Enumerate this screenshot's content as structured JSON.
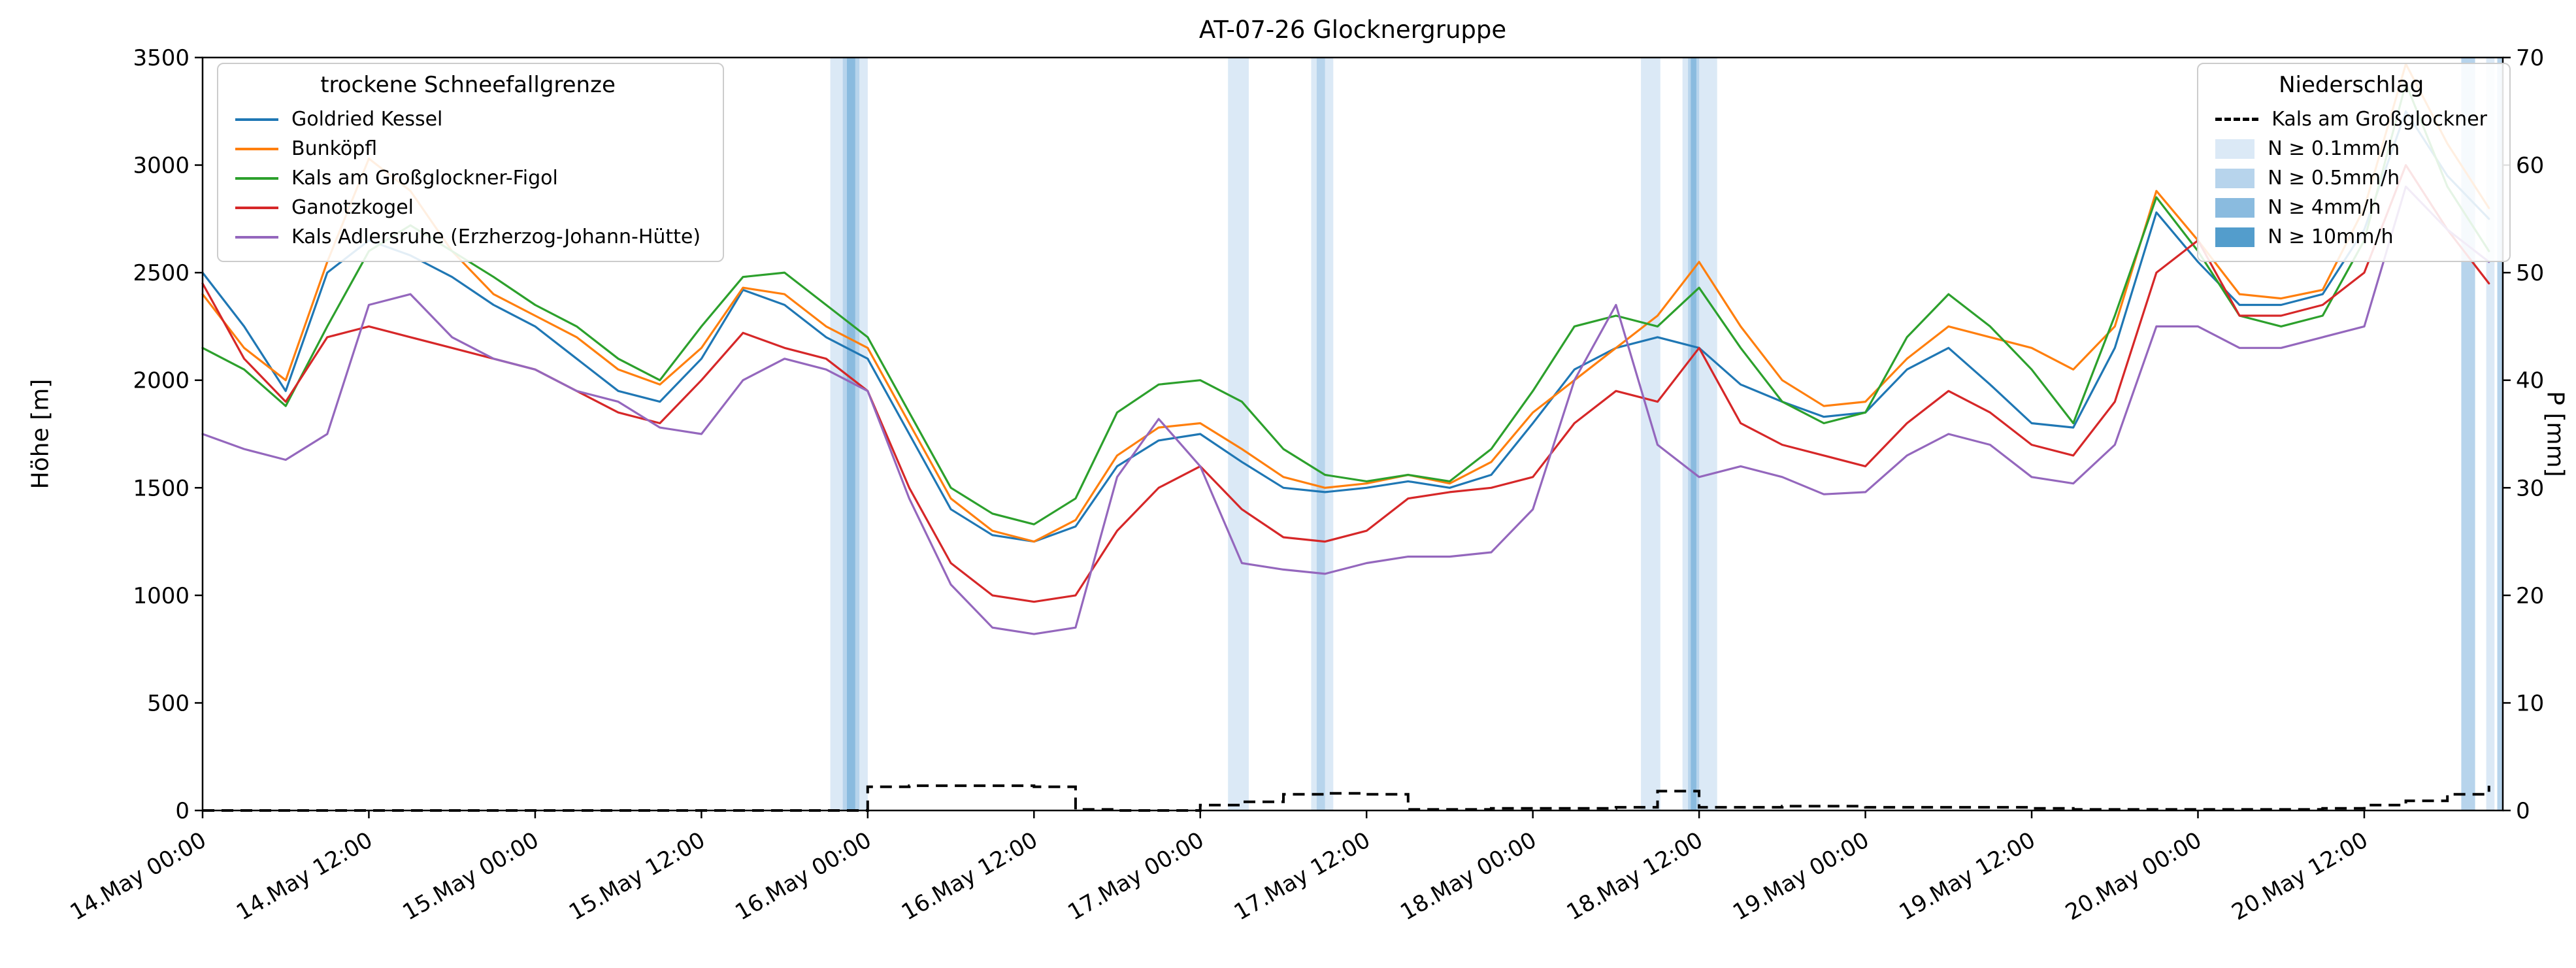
{
  "title": "AT-07-26 Glocknergruppe",
  "axes": {
    "y_left_label": "Höhe [m]",
    "y_right_label": "P [mm]",
    "y_left_ticks": [
      0,
      500,
      1000,
      1500,
      2000,
      2500,
      3000,
      3500
    ],
    "y_right_ticks": [
      0,
      10,
      20,
      30,
      40,
      50,
      60,
      70
    ],
    "y_left_range": [
      0,
      3500
    ],
    "y_right_range": [
      0,
      70
    ],
    "x_range_hours": [
      0,
      166
    ],
    "x_tick_hours": [
      0,
      12,
      24,
      36,
      48,
      60,
      72,
      84,
      96,
      108,
      120,
      132,
      144,
      156
    ],
    "x_tick_labels": [
      "14.May 00:00",
      "14.May 12:00",
      "15.May 00:00",
      "15.May 12:00",
      "16.May 00:00",
      "16.May 12:00",
      "17.May 00:00",
      "17.May 12:00",
      "18.May 00:00",
      "18.May 12:00",
      "19.May 00:00",
      "19.May 12:00",
      "20.May 00:00",
      "20.May 12:00"
    ]
  },
  "legend_snowline": {
    "title": "trockene Schneefallgrenze",
    "items": [
      {
        "label": "Goldried Kessel",
        "color": "#1f77b4"
      },
      {
        "label": "Bunköpfl",
        "color": "#ff7f0e"
      },
      {
        "label": "Kals am Großglockner-Figol",
        "color": "#2ca02c"
      },
      {
        "label": "Ganotzkogel",
        "color": "#d62728"
      },
      {
        "label": "Kals Adlersruhe (Erzherzog-Johann-Hütte)",
        "color": "#9467bd"
      }
    ]
  },
  "legend_precip": {
    "title": "Niederschlag",
    "line_item": {
      "label": "Kals am Großglockner",
      "color": "#000000"
    },
    "band_items": [
      {
        "label": "N ≥ 0.1mm/h",
        "color": "#dbe9f6"
      },
      {
        "label": "N ≥ 0.5mm/h",
        "color": "#b7d4ec"
      },
      {
        "label": "N ≥ 4mm/h",
        "color": "#8abbdf"
      },
      {
        "label": "N ≥ 10mm/h",
        "color": "#539dcc"
      }
    ]
  },
  "chart_data": {
    "type": "line",
    "title": "AT-07-26 Glocknergruppe",
    "x_unit": "hours since 14.May 00:00",
    "ylabel_left": "Höhe [m]",
    "ylabel_right": "P [mm]",
    "ylim_left": [
      0,
      3500
    ],
    "ylim_right": [
      0,
      70
    ],
    "grid": false,
    "x_hours": [
      0,
      3,
      6,
      9,
      12,
      15,
      18,
      21,
      24,
      27,
      30,
      33,
      36,
      39,
      42,
      45,
      48,
      51,
      54,
      57,
      60,
      63,
      66,
      69,
      72,
      75,
      78,
      81,
      84,
      87,
      90,
      93,
      96,
      99,
      102,
      105,
      108,
      111,
      114,
      117,
      120,
      123,
      126,
      129,
      132,
      135,
      138,
      141,
      144,
      147,
      150,
      153,
      156,
      159,
      162,
      165
    ],
    "series": [
      {
        "name": "Goldried Kessel",
        "color": "#1f77b4",
        "axis": "left",
        "values": [
          2500,
          2250,
          1950,
          2500,
          2650,
          2580,
          2480,
          2350,
          2250,
          2100,
          1950,
          1900,
          2100,
          2420,
          2350,
          2200,
          2100,
          1750,
          1400,
          1280,
          1250,
          1320,
          1600,
          1720,
          1750,
          1620,
          1500,
          1480,
          1500,
          1530,
          1500,
          1560,
          1800,
          2050,
          2150,
          2200,
          2150,
          1980,
          1900,
          1830,
          1850,
          2050,
          2150,
          1980,
          1800,
          1780,
          2150,
          2780,
          2550,
          2350,
          2350,
          2400,
          2700,
          3250,
          2950,
          2750
        ]
      },
      {
        "name": "Bunköpfl",
        "color": "#ff7f0e",
        "axis": "left",
        "values": [
          2400,
          2150,
          2000,
          2550,
          3030,
          2880,
          2600,
          2400,
          2300,
          2200,
          2050,
          1980,
          2150,
          2430,
          2400,
          2250,
          2150,
          1800,
          1450,
          1300,
          1250,
          1350,
          1650,
          1780,
          1800,
          1680,
          1550,
          1500,
          1520,
          1560,
          1520,
          1620,
          1850,
          2000,
          2150,
          2300,
          2550,
          2250,
          2000,
          1880,
          1900,
          2100,
          2250,
          2200,
          2150,
          2050,
          2250,
          2880,
          2650,
          2400,
          2380,
          2420,
          2800,
          3470,
          3100,
          2800
        ]
      },
      {
        "name": "Kals am Großglockner-Figol",
        "color": "#2ca02c",
        "axis": "left",
        "values": [
          2150,
          2050,
          1880,
          2250,
          2600,
          2720,
          2600,
          2480,
          2350,
          2250,
          2100,
          2000,
          2250,
          2480,
          2500,
          2350,
          2200,
          1850,
          1500,
          1380,
          1330,
          1450,
          1850,
          1980,
          2000,
          1900,
          1680,
          1560,
          1530,
          1560,
          1530,
          1680,
          1950,
          2250,
          2300,
          2250,
          2430,
          2150,
          1900,
          1800,
          1850,
          2200,
          2400,
          2250,
          2050,
          1800,
          2300,
          2850,
          2600,
          2300,
          2250,
          2300,
          2650,
          3380,
          2900,
          2600
        ]
      },
      {
        "name": "Ganotzkogel",
        "color": "#d62728",
        "axis": "left",
        "values": [
          2450,
          2100,
          1900,
          2200,
          2250,
          2200,
          2150,
          2100,
          2050,
          1950,
          1850,
          1800,
          2000,
          2220,
          2150,
          2100,
          1950,
          1500,
          1150,
          1000,
          970,
          1000,
          1300,
          1500,
          1600,
          1400,
          1270,
          1250,
          1300,
          1450,
          1480,
          1500,
          1550,
          1800,
          1950,
          1900,
          2150,
          1800,
          1700,
          1650,
          1600,
          1800,
          1950,
          1850,
          1700,
          1650,
          1900,
          2500,
          2650,
          2300,
          2300,
          2350,
          2500,
          3000,
          2700,
          2450
        ]
      },
      {
        "name": "Kals Adlersruhe (Erzherzog-Johann-Hütte)",
        "color": "#9467bd",
        "axis": "left",
        "values": [
          1750,
          1680,
          1630,
          1750,
          2350,
          2400,
          2200,
          2100,
          2050,
          1950,
          1900,
          1780,
          1750,
          2000,
          2100,
          2050,
          1950,
          1450,
          1050,
          850,
          820,
          850,
          1550,
          1820,
          1600,
          1150,
          1120,
          1100,
          1150,
          1180,
          1180,
          1200,
          1400,
          2000,
          2350,
          1700,
          1550,
          1600,
          1550,
          1470,
          1480,
          1650,
          1750,
          1700,
          1550,
          1520,
          1700,
          2250,
          2250,
          2150,
          2150,
          2200,
          2250,
          2900,
          2700,
          2550
        ]
      }
    ],
    "precip_line": {
      "name": "Kals am Großglockner",
      "color": "#000000",
      "axis": "right",
      "style": "dashed-step",
      "values": [
        0,
        0,
        0,
        0,
        0,
        0,
        0,
        0,
        0,
        0,
        0,
        0,
        0,
        0,
        0,
        0,
        2.2,
        2.3,
        2.3,
        2.3,
        2.2,
        0.1,
        0,
        0,
        0.5,
        0.8,
        1.5,
        1.6,
        1.5,
        0.1,
        0.1,
        0.2,
        0.2,
        0.2,
        0.3,
        1.8,
        0.3,
        0.3,
        0.4,
        0.4,
        0.3,
        0.3,
        0.3,
        0.3,
        0.2,
        0.1,
        0.1,
        0.1,
        0.1,
        0.1,
        0.1,
        0.2,
        0.5,
        0.9,
        1.5,
        2.3
      ]
    },
    "precip_bands": [
      {
        "start_hour": 45.3,
        "end_hour": 48.0,
        "intensity": "N ≥ 0.1mm/h",
        "color": "#dbe9f6"
      },
      {
        "start_hour": 46.2,
        "end_hour": 47.4,
        "intensity": "N ≥ 0.5mm/h",
        "color": "#b7d4ec"
      },
      {
        "start_hour": 46.5,
        "end_hour": 47.1,
        "intensity": "N ≥ 4mm/h",
        "color": "#8abbdf"
      },
      {
        "start_hour": 74.0,
        "end_hour": 75.5,
        "intensity": "N ≥ 0.1mm/h",
        "color": "#dbe9f6"
      },
      {
        "start_hour": 80.0,
        "end_hour": 81.6,
        "intensity": "N ≥ 0.1mm/h",
        "color": "#dbe9f6"
      },
      {
        "start_hour": 80.4,
        "end_hour": 81.0,
        "intensity": "N ≥ 0.5mm/h",
        "color": "#b7d4ec"
      },
      {
        "start_hour": 103.8,
        "end_hour": 105.2,
        "intensity": "N ≥ 0.1mm/h",
        "color": "#dbe9f6"
      },
      {
        "start_hour": 106.8,
        "end_hour": 109.3,
        "intensity": "N ≥ 0.1mm/h",
        "color": "#dbe9f6"
      },
      {
        "start_hour": 107.2,
        "end_hour": 108.0,
        "intensity": "N ≥ 0.5mm/h",
        "color": "#b7d4ec"
      },
      {
        "start_hour": 107.4,
        "end_hour": 107.8,
        "intensity": "N ≥ 4mm/h",
        "color": "#8abbdf"
      },
      {
        "start_hour": 163.0,
        "end_hour": 164.0,
        "intensity": "N ≥ 0.5mm/h",
        "color": "#b7d4ec"
      },
      {
        "start_hour": 164.8,
        "end_hour": 165.4,
        "intensity": "N ≥ 0.1mm/h",
        "color": "#dbe9f6"
      },
      {
        "start_hour": 165.6,
        "end_hour": 166.0,
        "intensity": "N ≥ 0.5mm/h",
        "color": "#b7d4ec"
      }
    ]
  }
}
